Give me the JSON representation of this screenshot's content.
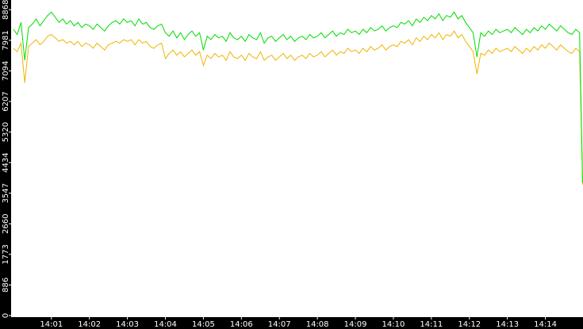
{
  "chart_data": {
    "type": "line",
    "x": [
      0,
      0.1,
      0.2,
      0.3,
      0.4,
      0.5,
      0.6,
      0.7,
      0.8,
      0.9,
      1,
      1.1,
      1.2,
      1.3,
      1.4,
      1.5,
      1.6,
      1.7,
      1.8,
      1.9,
      2,
      2.1,
      2.2,
      2.3,
      2.4,
      2.5,
      2.6,
      2.7,
      2.8,
      2.9,
      3,
      3.1,
      3.2,
      3.3,
      3.4,
      3.5,
      3.6,
      3.7,
      3.8,
      3.9,
      4,
      4.1,
      4.2,
      4.3,
      4.4,
      4.5,
      4.6,
      4.7,
      4.8,
      4.9,
      5,
      5.1,
      5.2,
      5.3,
      5.4,
      5.5,
      5.6,
      5.7,
      5.8,
      5.9,
      6,
      6.1,
      6.2,
      6.3,
      6.4,
      6.5,
      6.6,
      6.7,
      6.8,
      6.9,
      7,
      7.1,
      7.2,
      7.3,
      7.4,
      7.5,
      7.6,
      7.7,
      7.8,
      7.9,
      8,
      8.1,
      8.2,
      8.3,
      8.4,
      8.5,
      8.6,
      8.7,
      8.8,
      8.9,
      9,
      9.1,
      9.2,
      9.3,
      9.4,
      9.5,
      9.6,
      9.7,
      9.8,
      9.9,
      10,
      10.1,
      10.2,
      10.3,
      10.4,
      10.5,
      10.6,
      10.7,
      10.8,
      10.9,
      11,
      11.1,
      11.2,
      11.3,
      11.4,
      11.5,
      11.6,
      11.7,
      11.8,
      11.9,
      12,
      12.1,
      12.2,
      12.3,
      12.4,
      12.5,
      12.6,
      12.7,
      12.8,
      12.9,
      13,
      13.1,
      13.2,
      13.3,
      13.4,
      13.5,
      13.6,
      13.7,
      13.8,
      13.9,
      14,
      14.1,
      14.2,
      14.3,
      14.4,
      14.5,
      14.6,
      14.7,
      14.8,
      14.9,
      14.98
    ],
    "series": [
      {
        "color": "#00dd00",
        "values": [
          8300,
          8150,
          8500,
          7400,
          8350,
          8450,
          8600,
          8400,
          8550,
          8700,
          8800,
          8650,
          8500,
          8600,
          8450,
          8550,
          8400,
          8500,
          8350,
          8450,
          8400,
          8300,
          8450,
          8350,
          8250,
          8400,
          8500,
          8550,
          8450,
          8600,
          8500,
          8550,
          8400,
          8600,
          8450,
          8500,
          8350,
          8300,
          8400,
          8450,
          8200,
          8100,
          8250,
          8050,
          8200,
          8000,
          8150,
          8250,
          8100,
          8200,
          7700,
          8100,
          8000,
          8150,
          8050,
          8100,
          7950,
          8200,
          8050,
          8000,
          8100,
          7950,
          8150,
          8050,
          8000,
          8200,
          7900,
          8050,
          8100,
          7950,
          8050,
          8150,
          8000,
          8100,
          7950,
          8050,
          8100,
          8000,
          8150,
          8050,
          8100,
          8200,
          8050,
          8150,
          8250,
          8100,
          8200,
          8150,
          8300,
          8200,
          8250,
          8150,
          8300,
          8200,
          8350,
          8250,
          8300,
          8400,
          8250,
          8350,
          8400,
          8350,
          8500,
          8450,
          8550,
          8400,
          8600,
          8500,
          8650,
          8550,
          8700,
          8600,
          8750,
          8550,
          8700,
          8650,
          8800,
          8600,
          8700,
          8500,
          8350,
          8200,
          7500,
          8200,
          8100,
          8250,
          8150,
          8300,
          8200,
          8250,
          8300,
          8200,
          8350,
          8250,
          8150,
          8300,
          8200,
          8350,
          8250,
          8400,
          8300,
          8450,
          8350,
          8250,
          8400,
          8300,
          8200,
          8150,
          8300,
          8200,
          3850
        ]
      },
      {
        "color": "#f0b400",
        "values": [
          7750,
          7650,
          7900,
          6750,
          7800,
          7900,
          8000,
          7850,
          7950,
          8100,
          8150,
          8050,
          7950,
          8000,
          7900,
          7950,
          7850,
          7950,
          7800,
          7900,
          7850,
          7750,
          7900,
          7800,
          7700,
          7850,
          7900,
          7950,
          7900,
          8000,
          7950,
          8000,
          7850,
          8000,
          7900,
          7950,
          7800,
          7750,
          7850,
          7900,
          7450,
          7600,
          7700,
          7550,
          7650,
          7500,
          7600,
          7700,
          7550,
          7650,
          7250,
          7550,
          7450,
          7600,
          7500,
          7550,
          7400,
          7650,
          7500,
          7450,
          7550,
          7400,
          7600,
          7500,
          7450,
          7650,
          7400,
          7500,
          7550,
          7400,
          7500,
          7600,
          7450,
          7550,
          7400,
          7500,
          7550,
          7450,
          7600,
          7500,
          7550,
          7650,
          7500,
          7600,
          7700,
          7550,
          7650,
          7600,
          7750,
          7650,
          7700,
          7600,
          7750,
          7650,
          7800,
          7700,
          7750,
          7850,
          7700,
          7800,
          7850,
          7800,
          7950,
          7900,
          8000,
          7850,
          8050,
          7950,
          8100,
          8000,
          8150,
          8050,
          8200,
          8000,
          8150,
          8100,
          8250,
          8050,
          8150,
          7950,
          7800,
          7650,
          7000,
          7600,
          7550,
          7700,
          7600,
          7750,
          7650,
          7700,
          7750,
          7650,
          7800,
          7700,
          7600,
          7750,
          7650,
          7800,
          7700,
          7850,
          7750,
          7900,
          7800,
          7700,
          7850,
          7750,
          7650,
          7600,
          7750,
          7650,
          3800
        ]
      }
    ],
    "xlim": [
      -0.06,
      14.99
    ],
    "xticks": [
      {
        "value": 1,
        "label": "14:01"
      },
      {
        "value": 2,
        "label": "14:02"
      },
      {
        "value": 3,
        "label": "14:03"
      },
      {
        "value": 4,
        "label": "14:04"
      },
      {
        "value": 5,
        "label": "14:05"
      },
      {
        "value": 6,
        "label": "14:06"
      },
      {
        "value": 7,
        "label": "14:07"
      },
      {
        "value": 8,
        "label": "14:08"
      },
      {
        "value": 9,
        "label": "14:09"
      },
      {
        "value": 10,
        "label": "14:10"
      },
      {
        "value": 11,
        "label": "14:11"
      },
      {
        "value": 12,
        "label": "14:12"
      },
      {
        "value": 13,
        "label": "14:13"
      },
      {
        "value": 14,
        "label": "14:14"
      }
    ],
    "ylim": [
      0,
      9150
    ],
    "yticks": [
      0,
      886,
      1773,
      2660,
      3547,
      4434,
      5320,
      6207,
      7094,
      7981,
      8868
    ]
  }
}
